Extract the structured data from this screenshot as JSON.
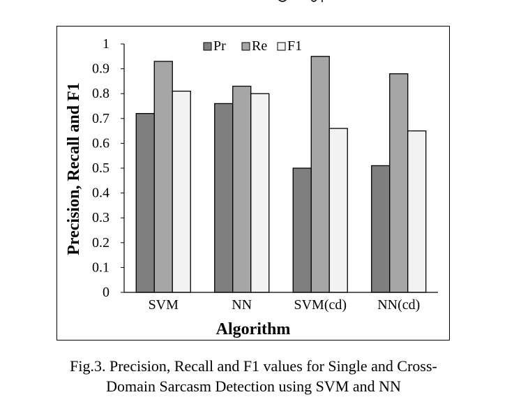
{
  "chart_data": {
    "type": "bar",
    "categories": [
      "SVM",
      "NN",
      "SVM(cd)",
      "NN(cd)"
    ],
    "series": [
      {
        "name": "Pr",
        "values": [
          0.72,
          0.76,
          0.5,
          0.51
        ],
        "color": "#7f7f7f"
      },
      {
        "name": "Re",
        "values": [
          0.93,
          0.83,
          0.95,
          0.88
        ],
        "color": "#a6a6a6"
      },
      {
        "name": "F1",
        "values": [
          0.81,
          0.8,
          0.66,
          0.65
        ],
        "color": "#f2f2f2"
      }
    ],
    "ylabel": "Precision, Recall and F1",
    "xlabel": "Algorithm",
    "ylim": [
      0,
      1
    ],
    "yticks": [
      "0",
      "0.1",
      "0.2",
      "0.3",
      "0.4",
      "0.5",
      "0.6",
      "0.7",
      "0.8",
      "0.9",
      "1"
    ],
    "legend_position": "top",
    "grid": false
  },
  "caption": {
    "line1": "Fig.3. Precision, Recall and F1 values for Single and Cross-",
    "line2": "Domain Sarcasm Detection using SVM and NN"
  }
}
